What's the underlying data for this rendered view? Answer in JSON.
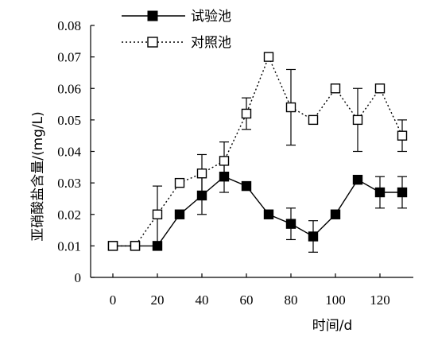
{
  "chart_data": {
    "type": "line",
    "xlabel": "时间/d",
    "ylabel": "亚硝酸盐含量/(mg/L)",
    "xlim": [
      -10,
      135
    ],
    "ylim": [
      0,
      0.08
    ],
    "xticks": [
      0,
      20,
      40,
      60,
      80,
      100,
      120
    ],
    "yticks": [
      0,
      0.01,
      0.02,
      0.03,
      0.04,
      0.05,
      0.06,
      0.07,
      0.08
    ],
    "ytick_labels": [
      "0",
      "0.01",
      "0.02",
      "0.03",
      "0.04",
      "0.05",
      "0.06",
      "0.07",
      "0.08"
    ],
    "grid": false,
    "legend_position": "top-left",
    "series": [
      {
        "name": "试验池",
        "line_style": "solid",
        "marker": "filled-square",
        "color": "#000000",
        "x": [
          0,
          10,
          20,
          30,
          40,
          50,
          60,
          70,
          80,
          90,
          100,
          110,
          120,
          130
        ],
        "y": [
          0.01,
          0.01,
          0.01,
          0.02,
          0.026,
          0.032,
          0.029,
          0.02,
          0.017,
          0.013,
          0.02,
          0.031,
          0.027,
          0.027
        ],
        "error": [
          0,
          0,
          0,
          0,
          0.006,
          0.005,
          0,
          0,
          0.005,
          0.005,
          0,
          0,
          0.005,
          0.005
        ]
      },
      {
        "name": "对照池",
        "line_style": "dotted",
        "marker": "open-square",
        "color": "#000000",
        "x": [
          0,
          10,
          20,
          30,
          40,
          50,
          60,
          70,
          80,
          90,
          100,
          110,
          120,
          130
        ],
        "y": [
          0.01,
          0.01,
          0.02,
          0.03,
          0.033,
          0.037,
          0.052,
          0.07,
          0.054,
          0.05,
          0.06,
          0.05,
          0.06,
          0.045
        ],
        "error": [
          0,
          0,
          0.009,
          0,
          0.006,
          0.006,
          0.005,
          0,
          0.012,
          0,
          0,
          0.01,
          0,
          0.005
        ]
      }
    ]
  }
}
